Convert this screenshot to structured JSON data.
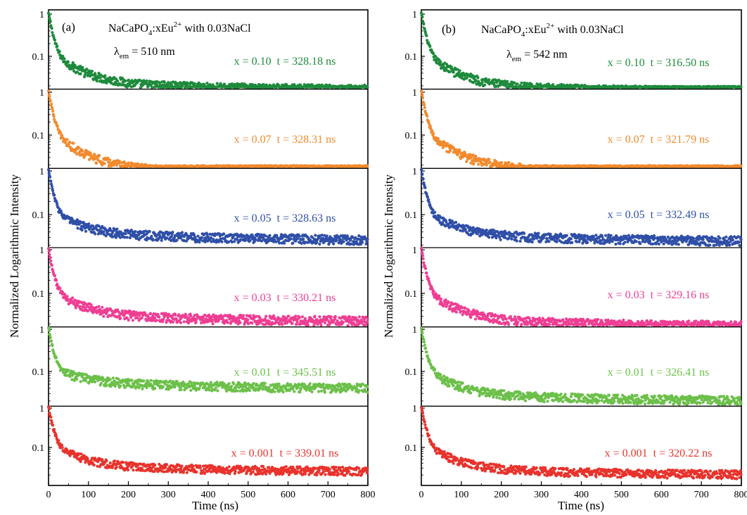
{
  "figure": {
    "ylabel": "Normalized Logarithmic Intensity",
    "xlabel": "Time (ns)"
  },
  "chart_data": [
    {
      "type": "scatter",
      "panel_label": "(a)",
      "title_parts": {
        "base": "NaCaPO",
        "sub": "4",
        "mid": ":xEu",
        "sup": "2+",
        "tail": " with 0.03NaCl"
      },
      "lambda": {
        "symbol": "λ",
        "sub": "em",
        "value": " = 510 nm"
      },
      "xlabel": "Time (ns)",
      "ylabel": "Normalized Logarithmic Intensity",
      "xlim": [
        0,
        800
      ],
      "xticks": [
        "0",
        "100",
        "200",
        "300",
        "400",
        "500",
        "600",
        "700",
        "800"
      ],
      "yscale": "log",
      "ytick_labels": [
        "1",
        "0.1"
      ],
      "series": [
        {
          "name": "x = 0.10  t = 328.18 ns",
          "color": "#1e8a3c",
          "tau": 328.18,
          "floor": 0.02
        },
        {
          "name": "x = 0.07  t = 328.31 ns",
          "color": "#f28a2e",
          "tau": 328.31,
          "floor": 0.015
        },
        {
          "name": "x = 0.05  t = 328.63 ns",
          "color": "#2f4fa8",
          "tau": 328.63,
          "floor": 0.032
        },
        {
          "name": "x = 0.03  t = 330.21 ns",
          "color": "#ee3e93",
          "tau": 330.21,
          "floor": 0.028
        },
        {
          "name": "x = 0.01  t = 345.51 ns",
          "color": "#6cc04a",
          "tau": 345.51,
          "floor": 0.048
        },
        {
          "name": "x = 0.001  t = 339.01 ns",
          "color": "#e8332c",
          "tau": 339.01,
          "floor": 0.03
        }
      ]
    },
    {
      "type": "scatter",
      "panel_label": "(b)",
      "title_parts": {
        "base": "NaCaPO",
        "sub": "4",
        "mid": ":xEu",
        "sup": "2+",
        "tail": " with 0.03NaCl"
      },
      "lambda": {
        "symbol": "λ",
        "sub": "em",
        "value": " = 542 nm"
      },
      "xlabel": "Time (ns)",
      "ylabel": "Normalized Logarithmic Intensity",
      "xlim": [
        0,
        800
      ],
      "xticks": [
        "0",
        "100",
        "200",
        "300",
        "400",
        "500",
        "600",
        "700",
        "800"
      ],
      "yscale": "log",
      "ytick_labels": [
        "1",
        "0.1"
      ],
      "series": [
        {
          "name": "x = 0.10  t = 316.50 ns",
          "color": "#1e8a3c",
          "tau": 316.5,
          "floor": 0.018
        },
        {
          "name": "x = 0.07  t = 321.79 ns",
          "color": "#f28a2e",
          "tau": 321.79,
          "floor": 0.016
        },
        {
          "name": "x = 0.05  t = 332.49 ns",
          "color": "#2f4fa8",
          "tau": 332.49,
          "floor": 0.03
        },
        {
          "name": "x = 0.03  t = 329.16 ns",
          "color": "#ee3e93",
          "tau": 329.16,
          "floor": 0.022
        },
        {
          "name": "x = 0.01  t = 326.41 ns",
          "color": "#6cc04a",
          "tau": 326.41,
          "floor": 0.025
        },
        {
          "name": "x = 0.001  t = 320.22 ns",
          "color": "#e8332c",
          "tau": 320.22,
          "floor": 0.025
        }
      ]
    }
  ]
}
